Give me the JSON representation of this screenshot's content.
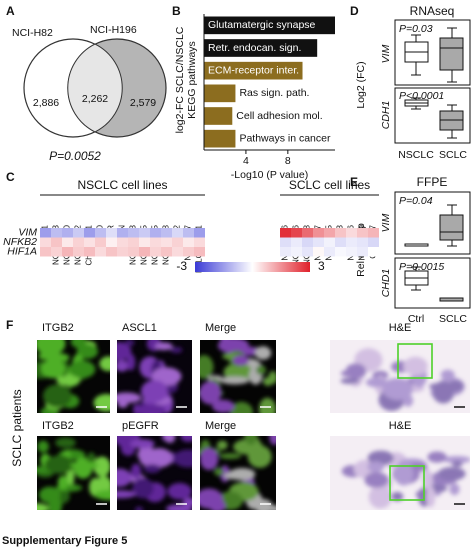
{
  "panel_a": {
    "label": "A",
    "sets": [
      "NCI-H82",
      "NCI-H196"
    ],
    "counts": [
      "2,886",
      "2,262",
      "2,579"
    ],
    "p_value": "P=0.0052"
  },
  "chart_data": [
    {
      "type": "bar",
      "orientation": "horizontal",
      "panel_label": "B",
      "ylabel": [
        "log2-FC SCLC/NSCLC",
        "KEGG pathways"
      ],
      "xlabel": "-Log10 (P value)",
      "categories": [
        "Glutamatergic synapse",
        "Retr. endocan. sign.",
        "ECM-receptor inter.",
        "Ras sign. path.",
        "Cell adhesion mol.",
        "Pathways in cancer"
      ],
      "values": [
        12.5,
        10.8,
        9.4,
        3.0,
        2.7,
        3.0
      ],
      "colors": [
        "#111111",
        "#111111",
        "#8c6d1f",
        "#8c6d1f",
        "#8c6d1f",
        "#8c6d1f"
      ],
      "xlim": [
        0,
        12.5
      ],
      "xticks": [
        4,
        8
      ]
    },
    {
      "type": "heatmap",
      "panel_label": "C",
      "group_labels": [
        "NSCLC cell lines",
        "SCLC cell lines"
      ],
      "group_sizes": [
        15,
        9
      ],
      "columns": [
        "UMC-11",
        "NCI-H1573",
        "NCI-H2170",
        "NCI-H2122",
        "ChaGo-K-1",
        "DV-90",
        "MOR",
        "BEN",
        "NCI-H1623",
        "NCI-H1395",
        "NCI-H1435",
        "NCI-H1838",
        "KNS-62",
        "NCI-H727",
        "LCLC-97TM1",
        "NCI-H196",
        "NCI-H2196",
        "NCI-H2198",
        "NCI-H187",
        "NCI-H345",
        "HCC33",
        "NCI-H146",
        "NCI-H889",
        "COR-L47"
      ],
      "rows": [
        "VIM",
        "NFKB2",
        "HIF1A"
      ],
      "values": [
        [
          -1.5,
          -1,
          -1.2,
          -0.8,
          -1.5,
          -1,
          -0.5,
          -1.2,
          -1,
          -0.8,
          -1.2,
          -1,
          -0.6,
          -1,
          -1.5,
          2.8,
          2.5,
          2,
          1.5,
          1.2,
          0.8,
          0.5,
          0.8,
          1
        ],
        [
          0.5,
          0.8,
          0.3,
          0.6,
          0.4,
          0.7,
          0.2,
          0.5,
          0.6,
          0.3,
          0.5,
          0.4,
          0.6,
          0.3,
          0.5,
          -0.5,
          -0.3,
          -0.6,
          -0.4,
          -0.2,
          -0.5,
          -0.3,
          -0.4,
          -0.6
        ],
        [
          0.8,
          0.6,
          1,
          0.7,
          0.9,
          0.5,
          0.8,
          0.6,
          0.7,
          1,
          0.6,
          0.8,
          0.5,
          0.7,
          0.9,
          -0.3,
          -0.2,
          -0.4,
          0.1,
          -0.3,
          -0.1,
          -0.2,
          -0.3,
          0
        ]
      ],
      "clim": [
        -3,
        3
      ],
      "cticks": [
        -3,
        3
      ],
      "colors": [
        "#3a3ad6",
        "#ffffff",
        "#e0202a"
      ]
    }
  ],
  "panel_d": {
    "label": "D",
    "title": "RNAseq",
    "ylabel": "Log2 (FC)",
    "genes": [
      "VIM",
      "CDH1"
    ],
    "p_values": [
      "P=0.03",
      "P<0.0001"
    ],
    "categories": [
      "NSCLC",
      "SCLC"
    ]
  },
  "panel_e": {
    "label": "E",
    "title": "FFPE",
    "ylabel": "Rel nor exp",
    "genes": [
      "VIM",
      "CHD1"
    ],
    "p_values": [
      "P=0.04",
      "P=0.0015"
    ],
    "categories": [
      "Ctrl",
      "SCLC"
    ]
  },
  "panel_f": {
    "label": "F",
    "side_label": "SCLC patients",
    "rows": [
      [
        "ITGB2",
        "ASCL1",
        "Merge",
        "H&E"
      ],
      [
        "ITGB2",
        "pEGFR",
        "Merge",
        "H&E"
      ]
    ]
  },
  "caption": "Supplementary Figure 5"
}
